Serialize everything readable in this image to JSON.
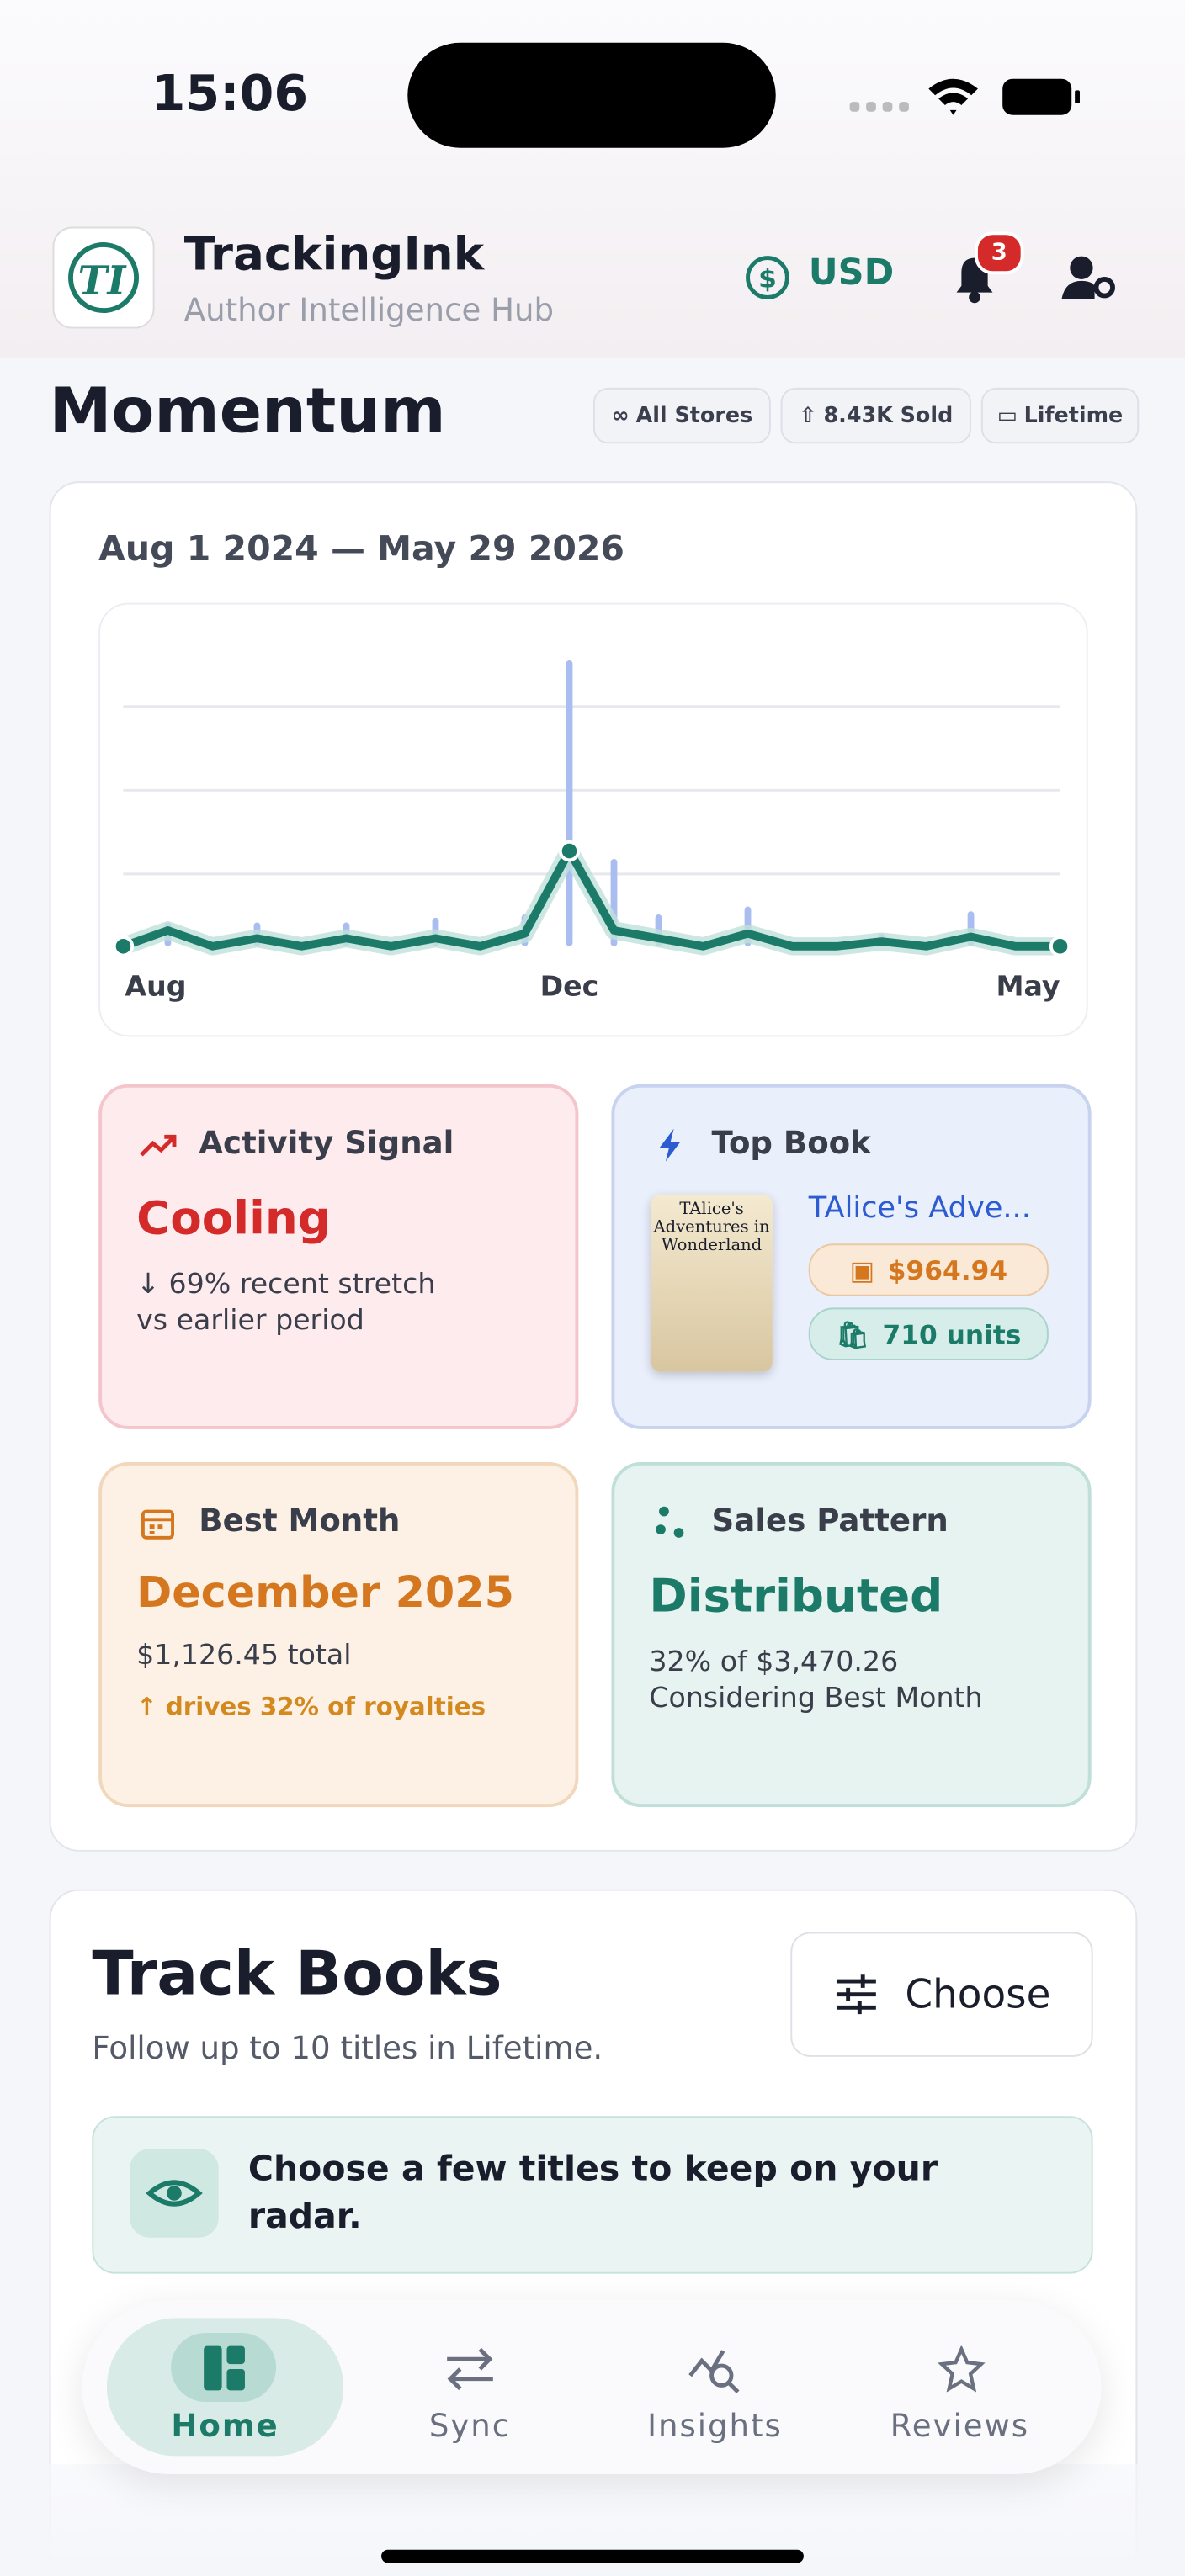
{
  "status_bar": {
    "time": "15:06"
  },
  "header": {
    "app_name": "TrackingInk",
    "subtitle": "Author Intelligence Hub",
    "currency": "USD",
    "notification_count": "3"
  },
  "momentum": {
    "title": "Momentum",
    "chips": [
      "All Stores",
      "8.43K Sold",
      "Lifetime"
    ],
    "date_range": "Aug 1 2024 — May 29 2026"
  },
  "chart_data": {
    "type": "line",
    "categories": [
      "Aug",
      null,
      null,
      null,
      null,
      null,
      null,
      null,
      null,
      null,
      "Dec",
      null,
      null,
      null,
      null,
      null,
      null,
      null,
      null,
      null,
      null,
      "May"
    ],
    "series": [
      {
        "color": "#1c7a68",
        "values": [
          0,
          10,
          0,
          5,
          0,
          5,
          0,
          5,
          0,
          8,
          60,
          10,
          5,
          0,
          8,
          0,
          0,
          3,
          0,
          6,
          0,
          0
        ]
      },
      {
        "color": "#a9bdf0",
        "values": [
          0,
          15,
          0,
          15,
          0,
          15,
          0,
          18,
          0,
          20,
          180,
          55,
          20,
          0,
          25,
          0,
          0,
          8,
          0,
          22,
          0,
          0
        ]
      }
    ],
    "ylim": [
      0,
      180
    ]
  },
  "cards": {
    "activity": {
      "label": "Activity Signal",
      "value": "Cooling",
      "line1": "↓ 69% recent stretch",
      "line2": "vs earlier period"
    },
    "top_book": {
      "label": "Top Book",
      "title": "TAlice's Adve...",
      "cover_title": "TAlice's Adventures in Wonderland",
      "revenue": "$964.94",
      "units": "710 units"
    },
    "best_month": {
      "label": "Best Month",
      "value": "December 2025",
      "total": "$1,126.45 total",
      "note": "↑ drives 32% of royalties"
    },
    "pattern": {
      "label": "Sales Pattern",
      "value": "Distributed",
      "line1": "32% of $3,470.26",
      "line2": "Considering Best Month"
    }
  },
  "track_books": {
    "title": "Track Books",
    "subtitle": "Follow up to 10 titles in Lifetime.",
    "button": "Choose",
    "hint": "Choose a few titles to keep on your radar."
  },
  "nav": {
    "items": [
      "Home",
      "Sync",
      "Insights",
      "Reviews"
    ]
  }
}
